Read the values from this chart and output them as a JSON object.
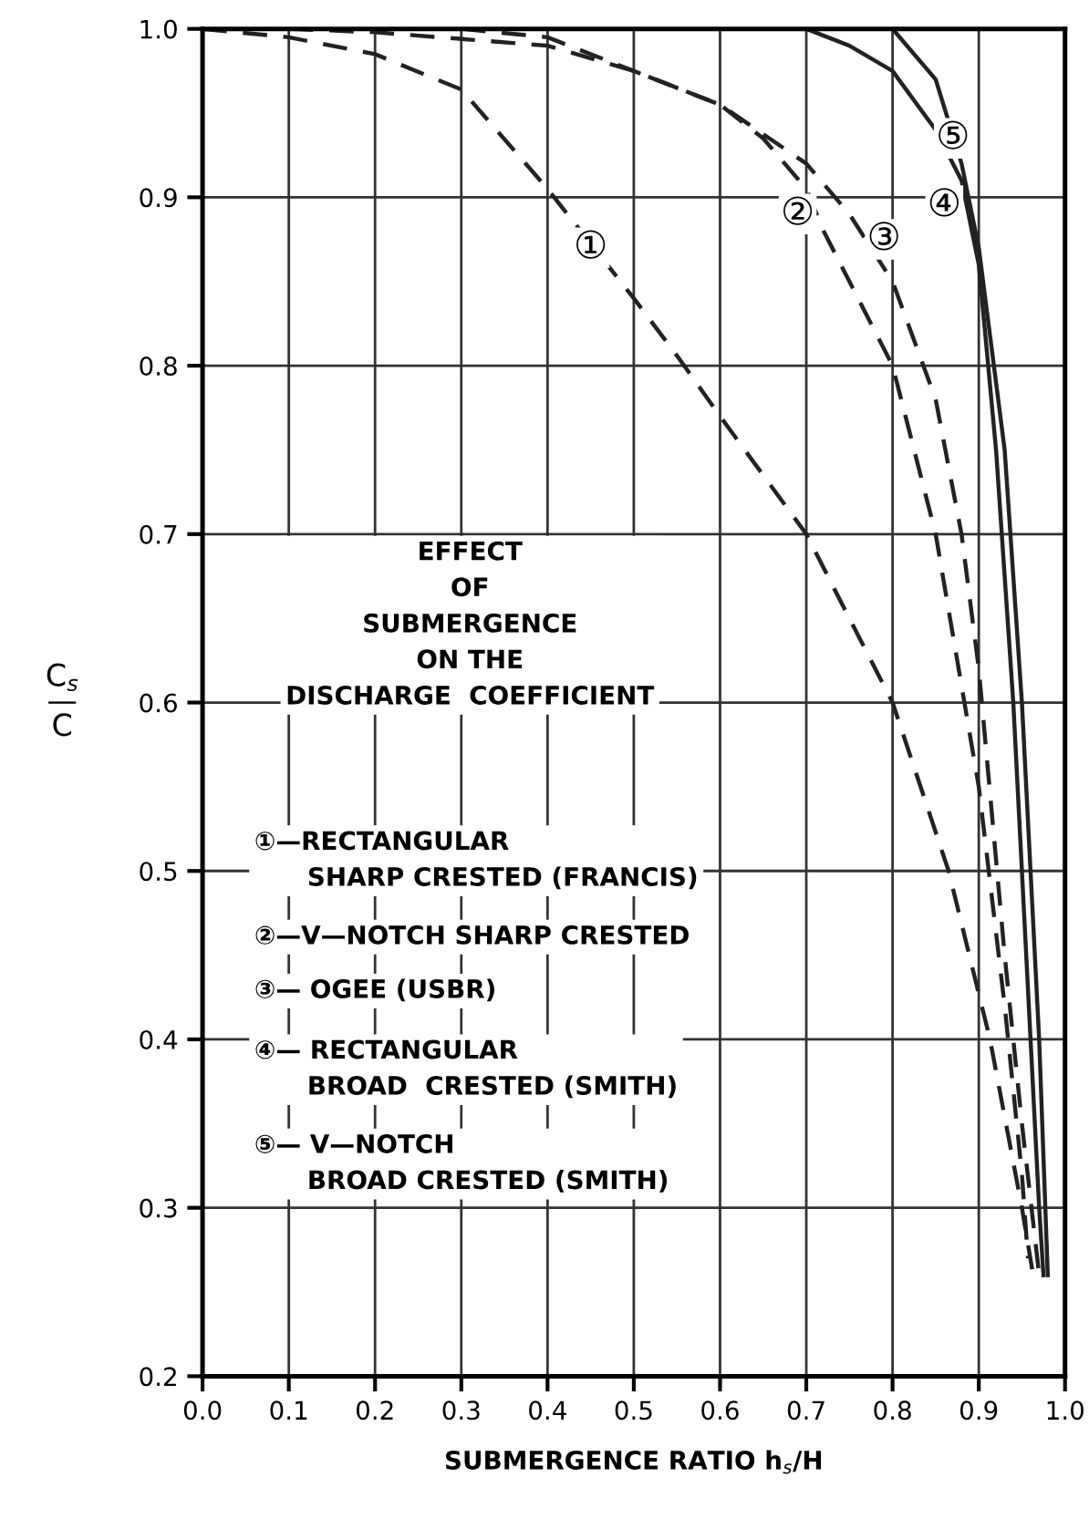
{
  "chart_data": {
    "type": "line",
    "xlabel": "SUBMERGENCE RATIO h$_{s}$/H",
    "ylabel": "C$_{s}$\n—\nC",
    "xlim": [
      0.0,
      1.0
    ],
    "ylim": [
      0.2,
      1.0
    ],
    "xticks": [
      {
        "value": 0.0,
        "label": "0.0"
      },
      0.1,
      0.2,
      0.3,
      0.4,
      0.5,
      0.6,
      0.7,
      0.8,
      0.9,
      {
        "value": 1.0,
        "label": "1.0"
      }
    ],
    "yticks": [
      0.2,
      0.3,
      0.4,
      0.5,
      0.6,
      0.7,
      0.8,
      0.9,
      {
        "value": 1.0,
        "label": "1.0"
      }
    ],
    "grid": true,
    "marker": "none",
    "series": [
      {
        "color": "#222222",
        "line_style": "dashed",
        "x": [
          0,
          0.1,
          0.2,
          0.3,
          0.4,
          0.5,
          0.55,
          0.6,
          0.7,
          0.8,
          0.865,
          0.913,
          0.95,
          0.963
        ],
        "values": [
          1.0,
          0.995,
          0.985,
          0.964,
          0.905,
          0.84,
          0.806,
          0.77,
          0.7,
          0.6,
          0.5,
          0.4,
          0.3,
          0.26
        ]
      },
      {
        "color": "#222222",
        "line_style": "dashed",
        "x": [
          0.1,
          0.2,
          0.4,
          0.5,
          0.6,
          0.65,
          0.7,
          0.72,
          0.75,
          0.8,
          0.85,
          0.9,
          0.93,
          0.95,
          0.957
        ],
        "values": [
          1.0,
          0.998,
          0.99,
          0.975,
          0.955,
          0.935,
          0.905,
          0.88,
          0.85,
          0.8,
          0.7,
          0.55,
          0.42,
          0.32,
          0.27
        ]
      },
      {
        "color": "#222222",
        "line_style": "dashed",
        "x": [
          0.3,
          0.4,
          0.5,
          0.6,
          0.7,
          0.75,
          0.8,
          0.85,
          0.88,
          0.9,
          0.93,
          0.95,
          0.97
        ],
        "values": [
          1.0,
          0.995,
          0.975,
          0.955,
          0.92,
          0.89,
          0.85,
          0.78,
          0.7,
          0.62,
          0.45,
          0.35,
          0.26
        ]
      },
      {
        "color": "#222222",
        "line_style": "solid",
        "x": [
          0.7,
          0.75,
          0.8,
          0.85,
          0.88,
          0.9,
          0.92,
          0.94,
          0.96,
          0.97,
          0.975
        ],
        "values": [
          1.0,
          0.99,
          0.975,
          0.94,
          0.91,
          0.86,
          0.75,
          0.6,
          0.4,
          0.3,
          0.26
        ]
      },
      {
        "color": "#222222",
        "line_style": "solid",
        "x": [
          0.8,
          0.85,
          0.88,
          0.9,
          0.93,
          0.95,
          0.97,
          0.98
        ],
        "values": [
          1.0,
          0.97,
          0.92,
          0.87,
          0.75,
          0.6,
          0.4,
          0.26
        ]
      }
    ],
    "annotations": [
      {
        "text": "①",
        "x": 0.45,
        "y": 0.87
      },
      {
        "text": "②",
        "x": 0.69,
        "y": 0.89
      },
      {
        "text": "③",
        "x": 0.79,
        "y": 0.875
      },
      {
        "text": "④",
        "x": 0.86,
        "y": 0.895
      },
      {
        "text": "⑤",
        "x": 0.87,
        "y": 0.935
      },
      "EFFECT\nOF\nSUBMERGENCE\nON THE\nDISCHARGE  COEFFICIENT",
      "①—RECTANGULAR\n      SHARP CRESTED (FRANCIS)",
      "②—V—NOTCH SHARP CRESTED",
      "③— OGEE (USBR)",
      "④— RECTANGULAR\n      BROAD  CRESTED (SMITH)",
      "⑤— V—NOTCH\n      BROAD CRESTED (SMITH)"
    ]
  }
}
